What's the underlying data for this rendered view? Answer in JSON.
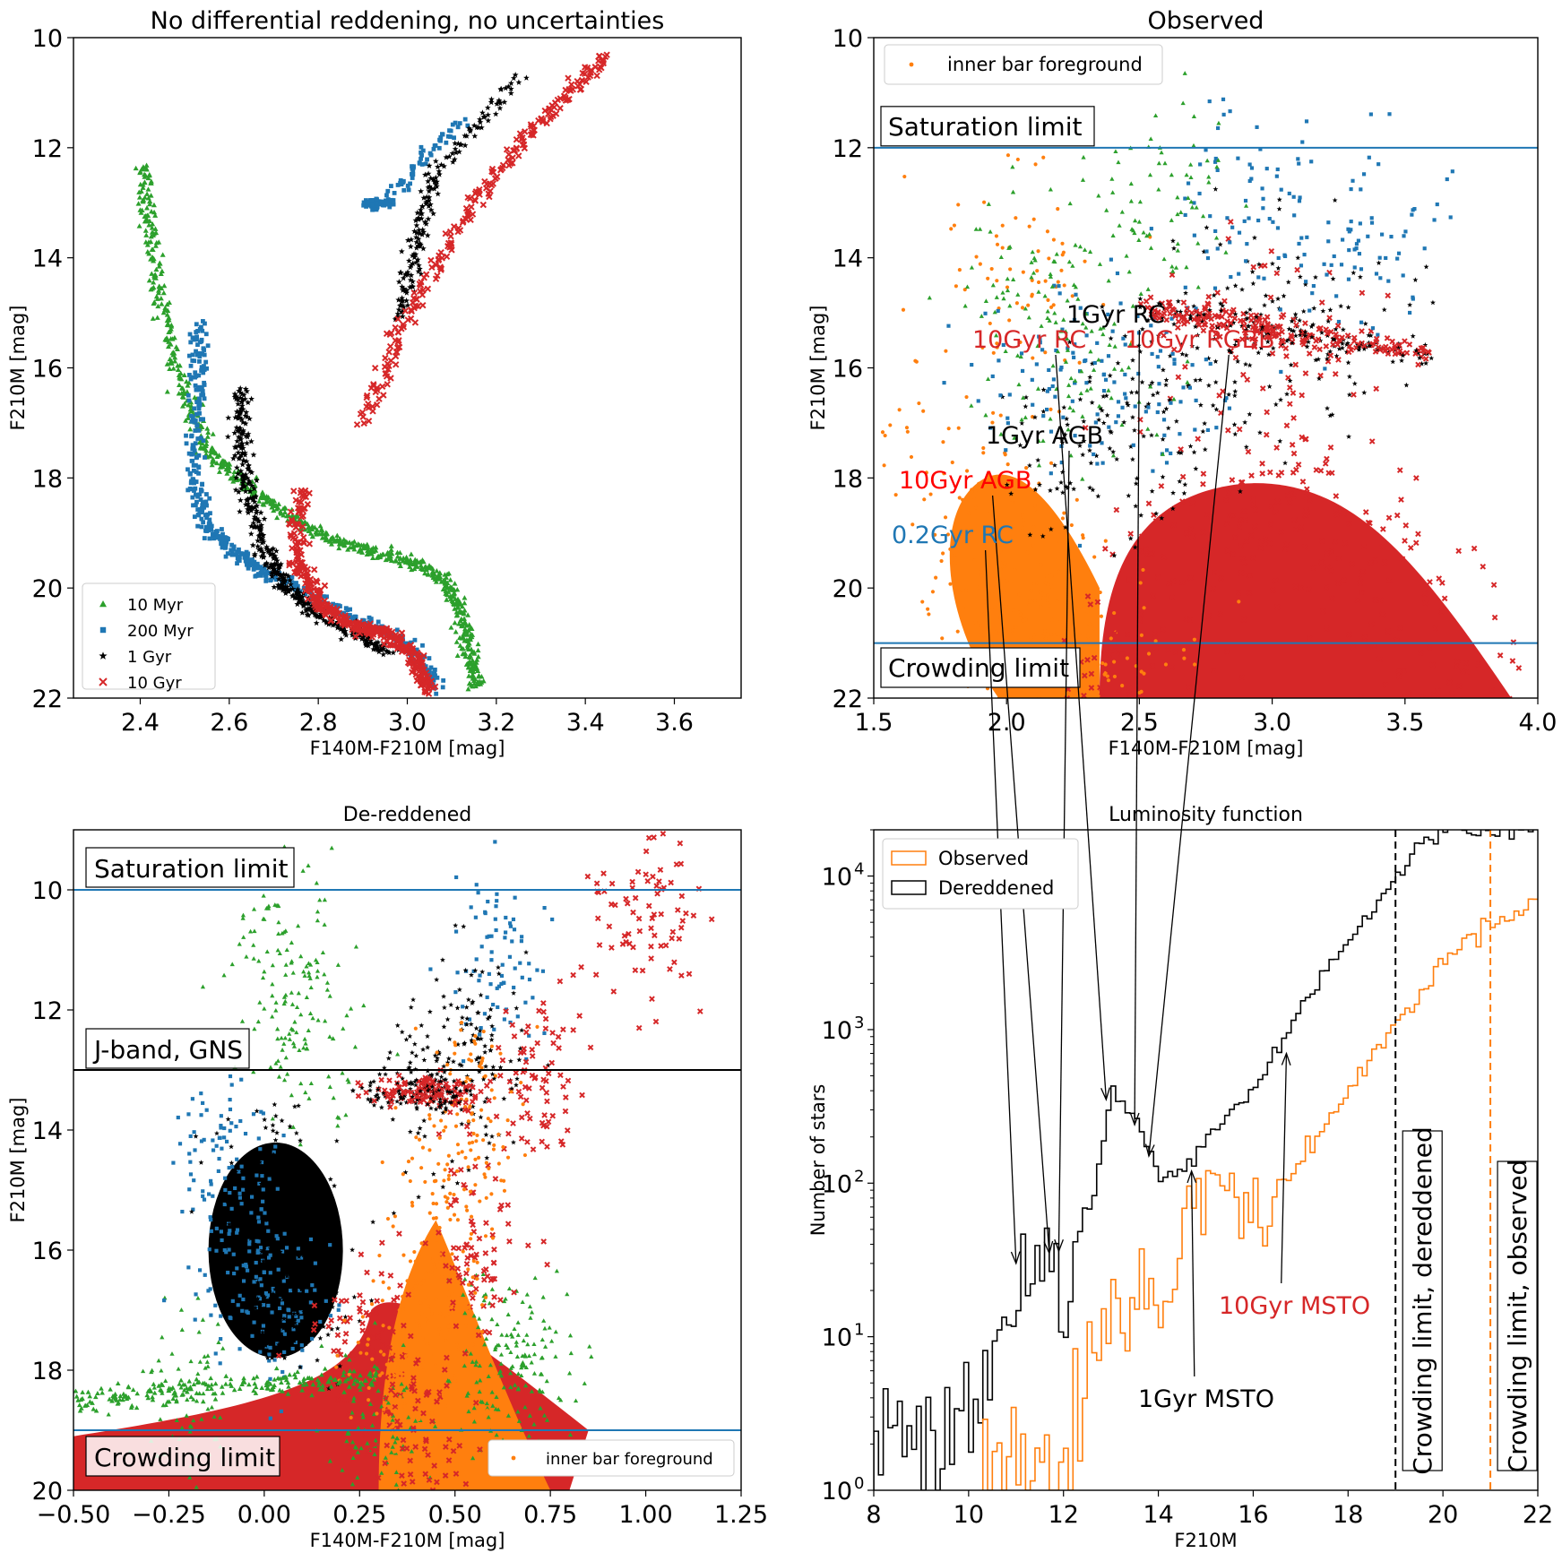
{
  "chart_data": [
    {
      "type": "scatter",
      "title": "No differential reddening, no uncertainties",
      "xlabel": "F140M-F210M [mag]",
      "ylabel": "F210M [mag]",
      "xlim": [
        2.25,
        3.75
      ],
      "ylim": [
        22,
        10
      ],
      "xticks": [
        2.4,
        2.6,
        2.8,
        3.0,
        3.2,
        3.4,
        3.6
      ],
      "xtick_labels": [
        "2.4",
        "2.6",
        "2.8",
        "3.0",
        "3.2",
        "3.4",
        "3.6"
      ],
      "yticks": [
        10,
        12,
        14,
        16,
        18,
        20,
        22
      ],
      "ytick_labels": [
        "10",
        "12",
        "14",
        "16",
        "18",
        "20",
        "22"
      ],
      "legend": [
        {
          "label": "10 Myr",
          "color": "#2ca02c",
          "marker": "triangle"
        },
        {
          "label": "200 Myr",
          "color": "#1f77b4",
          "marker": "square"
        },
        {
          "label": "1 Gyr",
          "color": "#000000",
          "marker": "star"
        },
        {
          "label": "10 Gyr",
          "color": "#d62728",
          "marker": "x"
        }
      ],
      "series": [
        {
          "name": "10 Myr",
          "color": "#2ca02c",
          "marker": "triangle",
          "x": [
            2.41,
            2.42,
            2.45,
            2.5,
            2.55,
            2.62,
            2.7,
            2.8,
            2.9,
            3.0,
            3.08,
            3.12,
            3.14,
            3.15
          ],
          "y": [
            12.3,
            13.5,
            15.0,
            16.5,
            17.5,
            18.0,
            18.5,
            19.0,
            19.3,
            19.5,
            19.8,
            20.4,
            21.2,
            21.8
          ]
        },
        {
          "name": "200 Myr",
          "color": "#1f77b4",
          "marker": "square",
          "x": [
            2.53,
            2.53,
            2.52,
            2.55,
            2.62,
            2.7,
            2.85,
            3.0,
            3.07,
            2.91,
            2.95,
            3.12
          ],
          "y": [
            15.2,
            16.5,
            18.0,
            18.9,
            19.4,
            19.8,
            20.4,
            21.0,
            21.8,
            13.0,
            13.0,
            11.5
          ]
        },
        {
          "name": "1 Gyr",
          "color": "#000000",
          "marker": "star",
          "x": [
            2.63,
            2.62,
            2.64,
            2.68,
            2.72,
            2.78,
            2.88,
            2.96,
            2.98,
            3.02,
            3.06,
            3.25
          ],
          "y": [
            16.4,
            17.3,
            18.3,
            19.3,
            19.9,
            20.4,
            20.8,
            21.2,
            15.1,
            13.8,
            12.5,
            10.7
          ]
        },
        {
          "name": "10 Gyr",
          "color": "#d62728",
          "marker": "x",
          "x": [
            2.76,
            2.75,
            2.8,
            2.88,
            2.95,
            3.02,
            3.05,
            2.9,
            3.0,
            3.15,
            3.3,
            3.45
          ],
          "y": [
            18.2,
            19.5,
            20.3,
            20.7,
            20.8,
            21.3,
            21.9,
            17.0,
            15.0,
            13.0,
            11.5,
            10.3
          ]
        }
      ],
      "annotations": []
    },
    {
      "type": "scatter",
      "title": "Observed",
      "xlabel": "F140M-F210M [mag]",
      "ylabel": "F210M [mag]",
      "xlim": [
        1.5,
        4.0
      ],
      "ylim": [
        22,
        10
      ],
      "xticks": [
        1.5,
        2.0,
        2.5,
        3.0,
        3.5,
        4.0
      ],
      "xtick_labels": [
        "1.5",
        "2.0",
        "2.5",
        "3.0",
        "3.5",
        "4.0"
      ],
      "yticks": [
        10,
        12,
        14,
        16,
        18,
        20,
        22
      ],
      "ytick_labels": [
        "10",
        "12",
        "14",
        "16",
        "18",
        "20",
        "22"
      ],
      "hlines": [
        {
          "y": 12,
          "color": "#1f77b4"
        },
        {
          "y": 21,
          "color": "#1f77b4"
        }
      ],
      "legend": [
        {
          "label": "inner bar foreground",
          "color": "#ff7f0e",
          "marker": "dot"
        }
      ],
      "boxed_labels": [
        "Saturation limit",
        "Crowding limit"
      ],
      "series": [
        {
          "name": "inner bar foreground",
          "color": "#ff7f0e",
          "x": [
            1.9,
            2.0,
            2.1,
            2.2,
            2.3,
            2.05
          ],
          "y": [
            18.0,
            19.5,
            20.5,
            21.5,
            21.8,
            14.3
          ]
        },
        {
          "name": "10 Gyr",
          "color": "#d62728",
          "x": [
            2.4,
            2.7,
            3.0,
            3.3,
            3.6,
            3.0
          ],
          "y": [
            21.8,
            19.5,
            18.0,
            19.5,
            21.5,
            15.3
          ]
        },
        {
          "name": "1 Gyr",
          "color": "#000000",
          "x": [
            2.3,
            2.6,
            2.9,
            3.2
          ],
          "y": [
            17.5,
            17.0,
            15.2,
            15.6
          ]
        },
        {
          "name": "200 Myr",
          "color": "#1f77b4",
          "x": [
            2.2,
            2.5,
            2.9,
            3.3
          ],
          "y": [
            16.0,
            16.5,
            13.0,
            13.5
          ]
        },
        {
          "name": "10 Myr",
          "color": "#2ca02c",
          "x": [
            2.1,
            2.3,
            2.6
          ],
          "y": [
            14.5,
            16.0,
            13.0
          ]
        }
      ],
      "annotations": []
    },
    {
      "type": "scatter",
      "title": "De-reddened",
      "xlabel": "F140M-F210M [mag]",
      "ylabel": "F210M [mag]",
      "xlim": [
        -0.5,
        1.25
      ],
      "ylim": [
        20,
        9
      ],
      "xticks": [
        -0.5,
        -0.25,
        0.0,
        0.25,
        0.5,
        0.75,
        1.0,
        1.25
      ],
      "xtick_labels": [
        "−0.50",
        "−0.25",
        "0.00",
        "0.25",
        "0.50",
        "0.75",
        "1.00",
        "1.25"
      ],
      "yticks": [
        10,
        12,
        14,
        16,
        18,
        20
      ],
      "ytick_labels": [
        "10",
        "12",
        "14",
        "16",
        "18",
        "20"
      ],
      "hlines": [
        {
          "y": 10,
          "color": "#1f77b4"
        },
        {
          "y": 13,
          "color": "#000000"
        },
        {
          "y": 19,
          "color": "#1f77b4"
        }
      ],
      "legend": [
        {
          "label": "inner bar foreground",
          "color": "#ff7f0e",
          "marker": "dot"
        }
      ],
      "boxed_labels": [
        "Saturation limit",
        "J-band, GNS",
        "Crowding limit"
      ],
      "series": [
        {
          "name": "10 Myr",
          "color": "#2ca02c",
          "x": [
            0.05,
            0.1,
            -0.2,
            0.3,
            0.6,
            0.7
          ],
          "y": [
            11.0,
            12.5,
            18.2,
            18.8,
            17.8,
            18.0
          ]
        },
        {
          "name": "200 Myr",
          "color": "#1f77b4",
          "x": [
            -0.1,
            -0.05,
            0.05,
            0.6
          ],
          "y": [
            14.5,
            16.0,
            17.0,
            11.2
          ]
        },
        {
          "name": "1 Gyr",
          "color": "#000000",
          "x": [
            0.0,
            0.05,
            0.1,
            0.45,
            0.55
          ],
          "y": [
            15.0,
            16.0,
            17.0,
            13.3,
            12.3
          ]
        },
        {
          "name": "10 Gyr",
          "color": "#d62728",
          "x": [
            0.25,
            0.4,
            0.55,
            0.7,
            1.0
          ],
          "y": [
            17.5,
            19.0,
            16.0,
            13.0,
            10.5
          ]
        },
        {
          "name": "inner bar foreground",
          "color": "#ff7f0e",
          "x": [
            0.35,
            0.45,
            0.5,
            0.55
          ],
          "y": [
            18.0,
            17.0,
            15.0,
            13.5
          ]
        }
      ],
      "annotations": []
    },
    {
      "type": "histogram",
      "title": "Luminosity function",
      "xlabel": "F210M",
      "ylabel": "Number of stars",
      "yscale": "log",
      "xlim": [
        8,
        22
      ],
      "ylim": [
        1,
        20000
      ],
      "xticks": [
        8,
        10,
        12,
        14,
        16,
        18,
        20,
        22
      ],
      "xtick_labels": [
        "8",
        "10",
        "12",
        "14",
        "16",
        "18",
        "20",
        "22"
      ],
      "yticks": [
        1,
        10,
        100,
        1000,
        10000
      ],
      "ytick_labels": [
        "10",
        "10",
        "10",
        "10",
        "10"
      ],
      "ytick_exponents": [
        "0",
        "1",
        "2",
        "3",
        "4"
      ],
      "vlines": [
        {
          "x": 19,
          "color": "#000000",
          "style": "dashed"
        },
        {
          "x": 21,
          "color": "#ff7f0e",
          "style": "dashed"
        }
      ],
      "legend": [
        {
          "label": "Observed",
          "color": "#ff7f0e"
        },
        {
          "label": "Dereddened",
          "color": "#000000"
        }
      ],
      "vertical_labels": [
        "Crowding limit, dereddened",
        "Crowding limit, observed"
      ],
      "series": [
        {
          "name": "Dereddened",
          "color": "#000000",
          "x": [
            8,
            9,
            10,
            10.5,
            11,
            11.5,
            12,
            12.5,
            13,
            13.5,
            14,
            14.5,
            15,
            15.5,
            16,
            16.5,
            17,
            17.5,
            18,
            18.5,
            19,
            19.5,
            20,
            20.5,
            21,
            21.5,
            22
          ],
          "y": [
            2,
            3,
            4,
            8,
            25,
            35,
            15,
            60,
            400,
            250,
            110,
            120,
            200,
            300,
            400,
            800,
            1500,
            2500,
            4000,
            6000,
            10000,
            16000,
            20000,
            20000,
            20000,
            20000,
            20000
          ]
        },
        {
          "name": "Observed",
          "color": "#ff7f0e",
          "x": [
            10.3,
            11,
            12,
            12.5,
            13,
            13.5,
            14,
            14.5,
            15,
            15.5,
            16,
            16.5,
            17,
            17.5,
            18,
            18.5,
            19,
            19.5,
            20,
            20.5,
            21,
            21.5,
            22
          ],
          "y": [
            1.5,
            2,
            2,
            6,
            12,
            18,
            15,
            40,
            120,
            100,
            60,
            80,
            150,
            250,
            400,
            700,
            1100,
            1800,
            2800,
            4000,
            5000,
            6000,
            7000
          ]
        }
      ],
      "annotations": [
        {
          "text": "1Gyr RC",
          "color": "#000000",
          "target_x": 13.5,
          "target_y": 240
        },
        {
          "text": "10Gyr RC",
          "color": "#d62728",
          "target_x": 12.9,
          "target_y": 350
        },
        {
          "text": "10Gyr RGBB",
          "color": "#d62728",
          "target_x": 13.8,
          "target_y": 150
        },
        {
          "text": "1Gyr AGB",
          "color": "#000000",
          "target_x": 11.9,
          "target_y": 36
        },
        {
          "text": "10Gyr AGB",
          "color": "#ff0000",
          "target_x": 11.7,
          "target_y": 35
        },
        {
          "text": "0.2Gyr RC",
          "color": "#1f77b4",
          "target_x": 11.0,
          "target_y": 30
        },
        {
          "text": "10Gyr MSTO",
          "color": "#d62728",
          "target_x": 16.7,
          "target_y": 700
        },
        {
          "text": "1Gyr MSTO",
          "color": "#000000",
          "target_x": 14.7,
          "target_y": 120
        }
      ]
    }
  ]
}
